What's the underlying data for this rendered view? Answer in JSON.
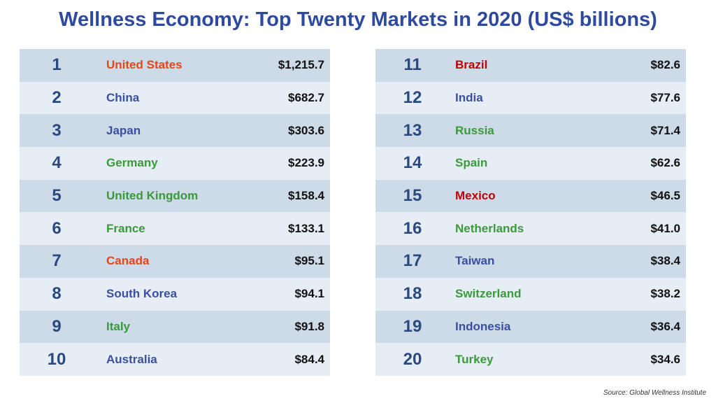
{
  "title": "Wellness Economy: Top Twenty Markets in 2020 (US$ billions)",
  "source": "Source: Global Wellness Institute",
  "colors": {
    "orange": "#e8441a",
    "blue": "#3a4fa0",
    "green": "#3a9a3a",
    "red": "#c00000"
  },
  "markets": [
    {
      "rank": "1",
      "name": "United States",
      "value": "$1,215.7",
      "color": "orange"
    },
    {
      "rank": "2",
      "name": "China",
      "value": "$682.7",
      "color": "blue"
    },
    {
      "rank": "3",
      "name": "Japan",
      "value": "$303.6",
      "color": "blue"
    },
    {
      "rank": "4",
      "name": "Germany",
      "value": "$223.9",
      "color": "green"
    },
    {
      "rank": "5",
      "name": "United Kingdom",
      "value": "$158.4",
      "color": "green"
    },
    {
      "rank": "6",
      "name": "France",
      "value": "$133.1",
      "color": "green"
    },
    {
      "rank": "7",
      "name": "Canada",
      "value": "$95.1",
      "color": "orange"
    },
    {
      "rank": "8",
      "name": "South Korea",
      "value": "$94.1",
      "color": "blue"
    },
    {
      "rank": "9",
      "name": "Italy",
      "value": "$91.8",
      "color": "green"
    },
    {
      "rank": "10",
      "name": "Australia",
      "value": "$84.4",
      "color": "blue"
    },
    {
      "rank": "11",
      "name": "Brazil",
      "value": "$82.6",
      "color": "red"
    },
    {
      "rank": "12",
      "name": "India",
      "value": "$77.6",
      "color": "blue"
    },
    {
      "rank": "13",
      "name": "Russia",
      "value": "$71.4",
      "color": "green"
    },
    {
      "rank": "14",
      "name": "Spain",
      "value": "$62.6",
      "color": "green"
    },
    {
      "rank": "15",
      "name": "Mexico",
      "value": "$46.5",
      "color": "red"
    },
    {
      "rank": "16",
      "name": "Netherlands",
      "value": "$41.0",
      "color": "green"
    },
    {
      "rank": "17",
      "name": "Taiwan",
      "value": "$38.4",
      "color": "blue"
    },
    {
      "rank": "18",
      "name": "Switzerland",
      "value": "$38.2",
      "color": "green"
    },
    {
      "rank": "19",
      "name": "Indonesia",
      "value": "$36.4",
      "color": "blue"
    },
    {
      "rank": "20",
      "name": "Turkey",
      "value": "$34.6",
      "color": "green"
    }
  ]
}
